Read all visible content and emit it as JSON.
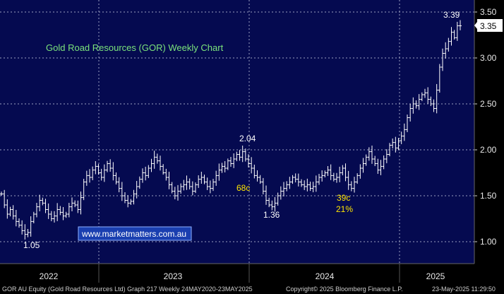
{
  "chart_data": {
    "type": "ohlc",
    "title": "Gold Road Resources (GOR) Weekly Chart",
    "y_ticks": [
      "1.00",
      "1.50",
      "2.00",
      "2.50",
      "3.00",
      "3.50"
    ],
    "y_tick_values": [
      1.0,
      1.5,
      2.0,
      2.5,
      3.0,
      3.5
    ],
    "ylim": [
      0.9,
      3.58
    ],
    "x_labels": [
      "2022",
      "2023",
      "2024",
      "2025"
    ],
    "last_price": "3.35",
    "annotations": [
      {
        "text": "3.39",
        "color": "white"
      },
      {
        "text": "2.04",
        "color": "white"
      },
      {
        "text": "68c",
        "color": "yellow"
      },
      {
        "text": "1.36",
        "color": "white"
      },
      {
        "text": "39c",
        "color": "yellow"
      },
      {
        "text": "21%",
        "color": "yellow"
      },
      {
        "text": "1.05",
        "color": "white"
      }
    ],
    "closes": [
      1.52,
      1.4,
      1.3,
      1.35,
      1.28,
      1.22,
      1.18,
      1.12,
      1.08,
      1.1,
      1.22,
      1.3,
      1.38,
      1.45,
      1.42,
      1.35,
      1.3,
      1.25,
      1.28,
      1.35,
      1.32,
      1.28,
      1.3,
      1.38,
      1.42,
      1.4,
      1.35,
      1.48,
      1.65,
      1.72,
      1.7,
      1.78,
      1.82,
      1.75,
      1.7,
      1.78,
      1.85,
      1.8,
      1.72,
      1.65,
      1.58,
      1.5,
      1.45,
      1.42,
      1.44,
      1.52,
      1.6,
      1.68,
      1.75,
      1.72,
      1.8,
      1.85,
      1.92,
      1.88,
      1.82,
      1.75,
      1.7,
      1.62,
      1.55,
      1.5,
      1.55,
      1.6,
      1.62,
      1.65,
      1.6,
      1.55,
      1.62,
      1.68,
      1.7,
      1.65,
      1.6,
      1.58,
      1.65,
      1.72,
      1.78,
      1.82,
      1.8,
      1.88,
      1.85,
      1.9,
      1.95,
      1.92,
      1.98,
      1.9,
      1.85,
      1.8,
      1.72,
      1.7,
      1.65,
      1.55,
      1.45,
      1.4,
      1.38,
      1.42,
      1.5,
      1.55,
      1.58,
      1.62,
      1.65,
      1.7,
      1.68,
      1.65,
      1.62,
      1.6,
      1.62,
      1.58,
      1.6,
      1.65,
      1.7,
      1.72,
      1.75,
      1.78,
      1.72,
      1.68,
      1.7,
      1.75,
      1.8,
      1.7,
      1.62,
      1.58,
      1.65,
      1.72,
      1.8,
      1.85,
      1.92,
      1.98,
      1.9,
      1.85,
      1.78,
      1.82,
      1.9,
      1.95,
      2.05,
      2.08,
      2.02,
      2.1,
      2.15,
      2.22,
      2.35,
      2.45,
      2.5,
      2.48,
      2.55,
      2.6,
      2.62,
      2.55,
      2.5,
      2.45,
      2.65,
      2.9,
      3.05,
      3.1,
      3.18,
      3.28,
      3.22,
      3.35,
      3.35
    ]
  },
  "last_box": {
    "fill_color": "#ffffff",
    "text_color": "#000000"
  },
  "website": {
    "text": "www.marketmatters.com.au",
    "box_color": "#1a3fb0"
  },
  "footer": {
    "left": "GOR AU Equity (Gold Road Resources Ltd) Graph 217  Weekly 24MAY2020-23MAY2025",
    "center": "Copyright© 2025 Bloomberg Finance L.P.",
    "right": "23-May-2025 11:29:50"
  },
  "colors": {
    "background": "#000000",
    "plot_area": "#050a50",
    "grid": "#9aa0c0",
    "bars": "#ffffff"
  }
}
